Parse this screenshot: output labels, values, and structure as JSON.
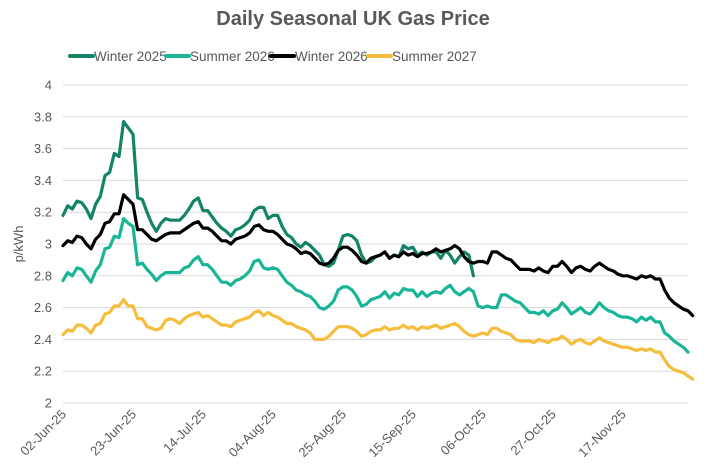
{
  "chart_data": {
    "type": "line",
    "title": "Daily Seasonal UK Gas Price",
    "xlabel": "",
    "ylabel": "p/kWh",
    "ylim": [
      2,
      4
    ],
    "yticks": [
      "2",
      "2.2",
      "2.4",
      "2.6",
      "2.8",
      "3",
      "3.2",
      "3.4",
      "3.6",
      "3.8",
      "4"
    ],
    "ytick_values": [
      2,
      2.2,
      2.4,
      2.6,
      2.8,
      3,
      3.2,
      3.4,
      3.6,
      3.8,
      4
    ],
    "x_start": "02-Jun-25",
    "x_frequency": "business-day",
    "x_count": 135,
    "xtick_labels": [
      "02-Jun-25",
      "23-Jun-25",
      "14-Jul-25",
      "04-Aug-25",
      "25-Aug-25",
      "15-Sep-25",
      "06-Oct-25",
      "27-Oct-25",
      "17-Nov-25"
    ],
    "xtick_index": [
      0,
      15,
      30,
      45,
      60,
      75,
      90,
      105,
      120
    ],
    "grid": true,
    "legend_position": "top",
    "series": [
      {
        "name": "Winter 2025",
        "color": "#138468",
        "values": [
          3.18,
          3.24,
          3.22,
          3.27,
          3.26,
          3.22,
          3.16,
          3.25,
          3.3,
          3.43,
          3.45,
          3.57,
          3.55,
          3.77,
          3.73,
          3.69,
          3.29,
          3.28,
          3.2,
          3.13,
          3.08,
          3.13,
          3.16,
          3.15,
          3.15,
          3.15,
          3.18,
          3.22,
          3.27,
          3.29,
          3.21,
          3.21,
          3.17,
          3.13,
          3.1,
          3.08,
          3.05,
          3.09,
          3.1,
          3.12,
          3.15,
          3.21,
          3.23,
          3.23,
          3.16,
          3.18,
          3.18,
          3.11,
          3.06,
          3.04,
          3.0,
          2.98,
          3.01,
          2.99,
          2.96,
          2.93,
          2.87,
          2.86,
          2.88,
          2.96,
          3.05,
          3.06,
          3.05,
          3.02,
          2.93,
          2.88,
          2.89,
          2.92,
          2.93,
          2.95,
          2.91,
          2.93,
          2.92,
          2.99,
          2.97,
          2.98,
          2.93,
          2.95,
          2.93,
          2.95,
          2.95,
          2.91,
          2.96,
          2.93,
          2.88,
          2.92,
          2.95,
          2.93,
          2.8
        ]
      },
      {
        "name": "Summer 2026",
        "color": "#1ab596",
        "values": [
          2.77,
          2.82,
          2.8,
          2.85,
          2.84,
          2.8,
          2.76,
          2.83,
          2.87,
          2.97,
          2.98,
          3.05,
          3.04,
          3.16,
          3.13,
          3.11,
          2.87,
          2.88,
          2.84,
          2.81,
          2.77,
          2.8,
          2.82,
          2.82,
          2.82,
          2.82,
          2.85,
          2.86,
          2.9,
          2.92,
          2.87,
          2.87,
          2.84,
          2.8,
          2.76,
          2.76,
          2.74,
          2.77,
          2.78,
          2.8,
          2.83,
          2.89,
          2.9,
          2.85,
          2.84,
          2.85,
          2.84,
          2.8,
          2.76,
          2.74,
          2.71,
          2.7,
          2.68,
          2.67,
          2.64,
          2.6,
          2.59,
          2.61,
          2.64,
          2.71,
          2.73,
          2.73,
          2.71,
          2.67,
          2.61,
          2.62,
          2.65,
          2.66,
          2.67,
          2.7,
          2.66,
          2.69,
          2.68,
          2.72,
          2.71,
          2.71,
          2.67,
          2.7,
          2.67,
          2.69,
          2.7,
          2.69,
          2.72,
          2.74,
          2.7,
          2.68,
          2.7,
          2.72,
          2.7,
          2.61,
          2.6,
          2.61,
          2.6,
          2.6,
          2.68,
          2.68,
          2.66,
          2.64,
          2.63,
          2.6,
          2.57,
          2.57,
          2.56,
          2.58,
          2.55,
          2.58,
          2.59,
          2.63,
          2.6,
          2.56,
          2.58,
          2.6,
          2.57,
          2.56,
          2.59,
          2.63,
          2.6,
          2.58,
          2.57,
          2.55,
          2.54,
          2.54,
          2.53,
          2.51,
          2.54,
          2.52,
          2.54,
          2.51,
          2.51,
          2.44,
          2.42,
          2.39,
          2.37,
          2.35,
          2.32
        ]
      },
      {
        "name": "Winter 2026",
        "color": "#000000",
        "values": [
          2.99,
          3.02,
          3.01,
          3.05,
          3.04,
          3.0,
          2.97,
          3.03,
          3.06,
          3.13,
          3.14,
          3.19,
          3.19,
          3.31,
          3.28,
          3.25,
          3.09,
          3.09,
          3.06,
          3.03,
          3.02,
          3.04,
          3.06,
          3.07,
          3.07,
          3.07,
          3.09,
          3.11,
          3.13,
          3.14,
          3.1,
          3.1,
          3.08,
          3.05,
          3.02,
          3.02,
          3.0,
          3.03,
          3.04,
          3.05,
          3.07,
          3.11,
          3.12,
          3.09,
          3.08,
          3.08,
          3.06,
          3.03,
          3.0,
          2.99,
          2.97,
          2.94,
          2.95,
          2.94,
          2.91,
          2.88,
          2.87,
          2.88,
          2.91,
          2.96,
          2.98,
          2.98,
          2.96,
          2.93,
          2.89,
          2.88,
          2.91,
          2.92,
          2.93,
          2.95,
          2.91,
          2.93,
          2.92,
          2.95,
          2.93,
          2.94,
          2.92,
          2.94,
          2.94,
          2.95,
          2.97,
          2.95,
          2.96,
          2.97,
          2.99,
          2.97,
          2.92,
          2.89,
          2.88,
          2.89,
          2.89,
          2.88,
          2.95,
          2.95,
          2.93,
          2.91,
          2.9,
          2.87,
          2.84,
          2.84,
          2.84,
          2.83,
          2.85,
          2.83,
          2.82,
          2.86,
          2.86,
          2.89,
          2.86,
          2.82,
          2.85,
          2.86,
          2.84,
          2.83,
          2.86,
          2.88,
          2.86,
          2.84,
          2.83,
          2.81,
          2.8,
          2.8,
          2.79,
          2.78,
          2.8,
          2.79,
          2.8,
          2.78,
          2.78,
          2.71,
          2.66,
          2.63,
          2.61,
          2.59,
          2.58,
          2.55
        ]
      },
      {
        "name": "Summer 2027",
        "color": "#f6bd3c",
        "values": [
          2.43,
          2.46,
          2.45,
          2.49,
          2.49,
          2.47,
          2.44,
          2.49,
          2.5,
          2.56,
          2.57,
          2.61,
          2.61,
          2.65,
          2.61,
          2.61,
          2.53,
          2.53,
          2.48,
          2.47,
          2.46,
          2.47,
          2.52,
          2.53,
          2.52,
          2.5,
          2.53,
          2.55,
          2.56,
          2.57,
          2.54,
          2.55,
          2.53,
          2.51,
          2.49,
          2.49,
          2.48,
          2.51,
          2.52,
          2.53,
          2.54,
          2.57,
          2.58,
          2.55,
          2.57,
          2.55,
          2.54,
          2.52,
          2.5,
          2.5,
          2.48,
          2.47,
          2.46,
          2.44,
          2.4,
          2.4,
          2.4,
          2.42,
          2.45,
          2.48,
          2.48,
          2.48,
          2.47,
          2.45,
          2.42,
          2.43,
          2.45,
          2.46,
          2.46,
          2.48,
          2.46,
          2.47,
          2.47,
          2.49,
          2.47,
          2.48,
          2.46,
          2.48,
          2.47,
          2.48,
          2.49,
          2.47,
          2.48,
          2.49,
          2.5,
          2.48,
          2.45,
          2.43,
          2.42,
          2.43,
          2.44,
          2.43,
          2.47,
          2.47,
          2.45,
          2.44,
          2.43,
          2.4,
          2.39,
          2.39,
          2.39,
          2.38,
          2.4,
          2.39,
          2.38,
          2.4,
          2.4,
          2.42,
          2.4,
          2.37,
          2.39,
          2.4,
          2.38,
          2.37,
          2.39,
          2.41,
          2.39,
          2.38,
          2.37,
          2.36,
          2.35,
          2.35,
          2.34,
          2.33,
          2.34,
          2.33,
          2.34,
          2.32,
          2.32,
          2.27,
          2.23,
          2.21,
          2.2,
          2.19,
          2.17,
          2.15
        ]
      }
    ]
  }
}
